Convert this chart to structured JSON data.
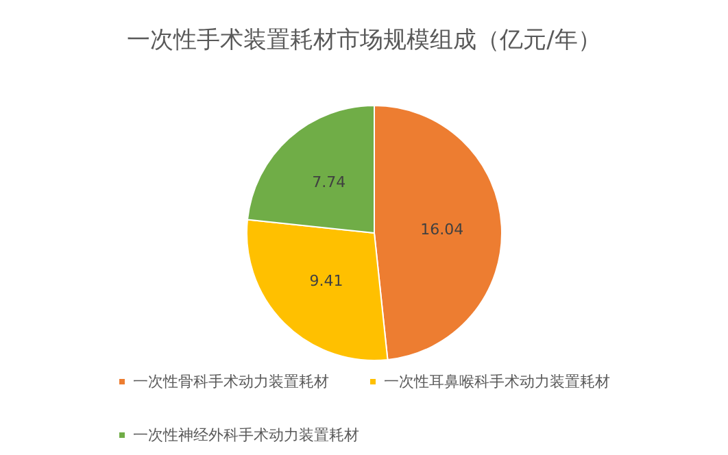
{
  "chart_data": {
    "type": "pie",
    "title": "一次性手术装置耗材市场规模组成（亿元/年）",
    "categories": [
      "一次性骨科手术动力装置耗材",
      "一次性耳鼻喉科手术动力装置耗材",
      "一次性神经外科手术动力装置耗材"
    ],
    "values": [
      16.04,
      9.41,
      7.74
    ],
    "colors": [
      "#ed7d31",
      "#ffc000",
      "#70ad47"
    ],
    "data_labels": true,
    "legend": "bottom"
  }
}
